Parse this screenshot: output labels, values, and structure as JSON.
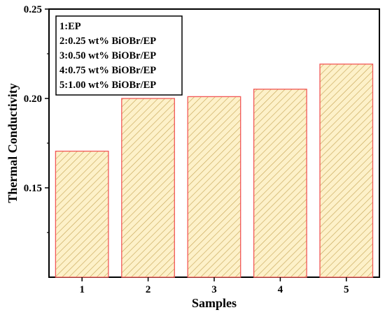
{
  "chart_data": {
    "type": "bar",
    "categories": [
      "1",
      "2",
      "3",
      "4",
      "5"
    ],
    "values": [
      0.1705,
      0.2,
      0.201,
      0.2052,
      0.2192
    ],
    "xlabel": "Samples",
    "ylabel": "Thermal Conductivity",
    "ylim": [
      0.1,
      0.25
    ],
    "yticks": [
      "0.15",
      "0.20",
      "0.25"
    ],
    "legend": {
      "placement": "top-left",
      "entries": [
        "1:EP",
        "2:0.25 wt% BiOBr/EP",
        "3:0.50 wt% BiOBr/EP",
        "4:0.75 wt% BiOBr/EP",
        "5:1.00 wt% BiOBr/EP"
      ]
    },
    "grid": false,
    "bar_style": {
      "fill": "#fdf1c9",
      "edge": "#f25757",
      "hatch": "diagonal",
      "hatch_color": "#c8a85a"
    }
  }
}
